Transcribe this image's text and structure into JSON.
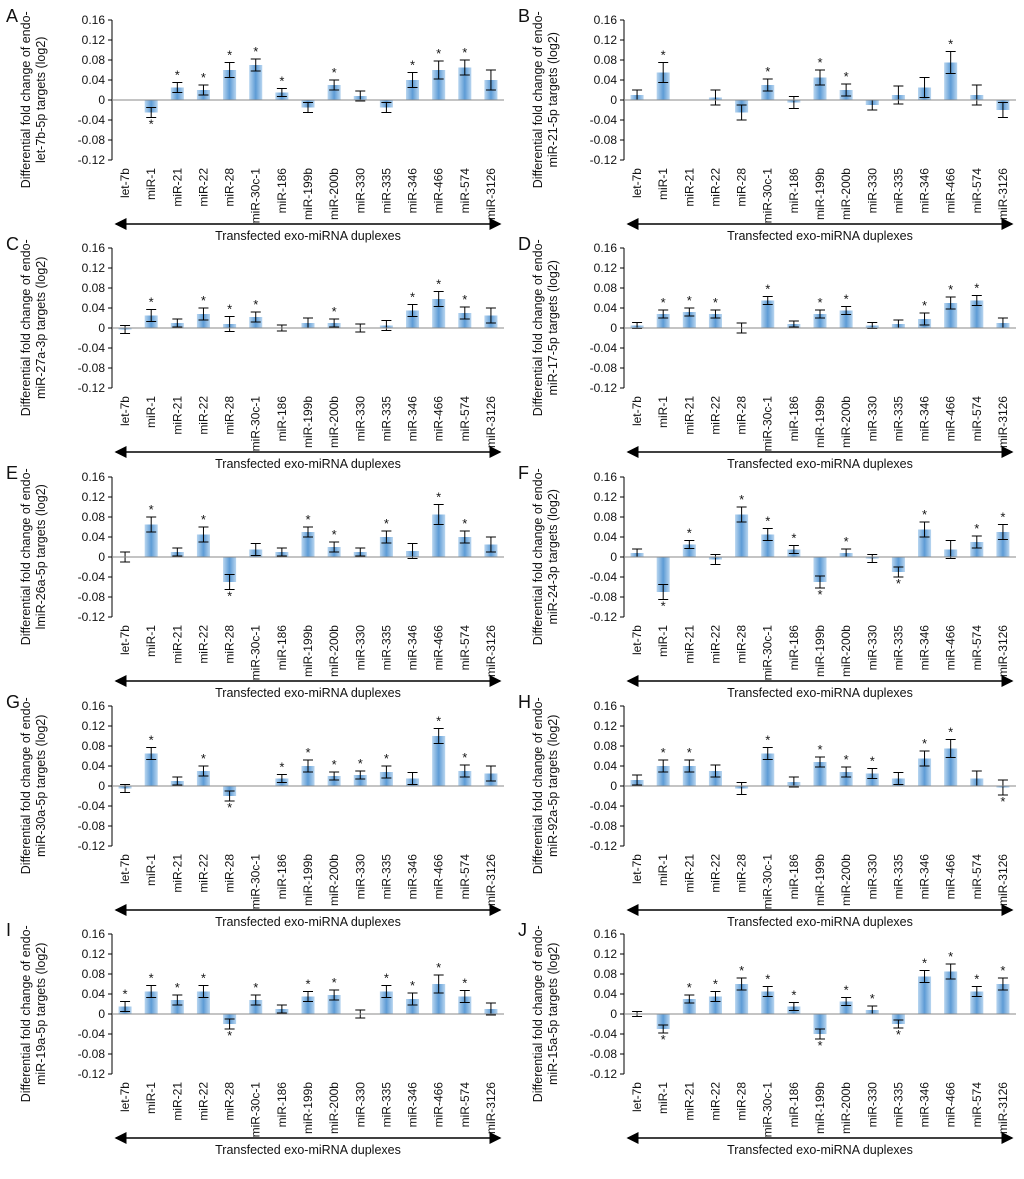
{
  "figure": {
    "shared": {
      "categories": [
        "let-7b",
        "miR-1",
        "miR-21",
        "miR-22",
        "miR-28",
        "miR-30c-1",
        "miR-186",
        "miR-199b",
        "miR-200b",
        "miR-330",
        "miR-335",
        "miR-346",
        "miR-466",
        "miR-574",
        "miR-3126"
      ],
      "ylim": [
        -0.12,
        0.16
      ],
      "yticks": [
        "0.16",
        "0.12",
        "0.08",
        "0.04",
        "0",
        "-0.04",
        "-0.08",
        "-0.12"
      ],
      "xlabel": "Transfected exo-miRNA duplexes",
      "significance_marker": "*"
    },
    "colors": {
      "bar": "#6fa8dc",
      "bar_dark": "#3d85c6",
      "axis": "#000000",
      "error": "#000000"
    }
  },
  "chart_data": [
    {
      "panel": "A",
      "type": "bar",
      "title": "",
      "ylabel_line1": "Differential fold change of endo-",
      "ylabel_line2": "let-7b-5p targets (log2)",
      "values": [
        0,
        -0.025,
        0.025,
        0.02,
        0.06,
        0.07,
        0.015,
        -0.015,
        0.03,
        0.008,
        -0.015,
        0.04,
        0.06,
        0.065,
        0.04
      ],
      "errors": [
        0,
        0.01,
        0.01,
        0.01,
        0.015,
        0.012,
        0.008,
        0.01,
        0.01,
        0.01,
        0.01,
        0.015,
        0.018,
        0.015,
        0.02
      ],
      "significant": [
        false,
        true,
        true,
        true,
        true,
        true,
        true,
        false,
        true,
        false,
        false,
        true,
        true,
        true,
        false
      ]
    },
    {
      "panel": "B",
      "type": "bar",
      "title": "",
      "ylabel_line1": "Differential fold change of endo-",
      "ylabel_line2": "miR-21-5p targets (log2)",
      "values": [
        0.01,
        0.055,
        0,
        0.005,
        -0.025,
        0.03,
        -0.005,
        0.045,
        0.02,
        -0.01,
        0.01,
        0.025,
        0.075,
        0.01,
        -0.02
      ],
      "errors": [
        0.01,
        0.02,
        0,
        0.015,
        0.015,
        0.012,
        0.012,
        0.015,
        0.012,
        0.01,
        0.018,
        0.02,
        0.022,
        0.02,
        0.015
      ],
      "significant": [
        false,
        true,
        false,
        false,
        false,
        true,
        false,
        true,
        true,
        false,
        false,
        false,
        true,
        false,
        false
      ]
    },
    {
      "panel": "C",
      "type": "bar",
      "title": "",
      "ylabel_line1": "Differential fold change of endo-",
      "ylabel_line2": "miR-27a-3p targets (log2)",
      "values": [
        -0.003,
        0.025,
        0.01,
        0.028,
        0.008,
        0.022,
        0,
        0.01,
        0.01,
        0,
        0.005,
        0.035,
        0.058,
        0.03,
        0.025
      ],
      "errors": [
        0.008,
        0.012,
        0.008,
        0.012,
        0.015,
        0.01,
        0.006,
        0.01,
        0.008,
        0.008,
        0.01,
        0.012,
        0.015,
        0.012,
        0.015
      ],
      "significant": [
        false,
        true,
        false,
        true,
        true,
        true,
        false,
        false,
        true,
        false,
        false,
        true,
        true,
        true,
        false
      ]
    },
    {
      "panel": "D",
      "type": "bar",
      "title": "",
      "ylabel_line1": "Differential fold change of endo-",
      "ylabel_line2": "miR-17-5p targets (log2)",
      "values": [
        0.005,
        0.028,
        0.032,
        0.028,
        0,
        0.055,
        0.008,
        0.028,
        0.035,
        0.005,
        0.008,
        0.018,
        0.05,
        0.055,
        0.01
      ],
      "errors": [
        0.006,
        0.008,
        0.008,
        0.008,
        0.01,
        0.008,
        0.006,
        0.008,
        0.008,
        0.006,
        0.008,
        0.012,
        0.012,
        0.01,
        0.01
      ],
      "significant": [
        false,
        true,
        true,
        true,
        false,
        true,
        false,
        true,
        true,
        false,
        false,
        true,
        true,
        true,
        false
      ]
    },
    {
      "panel": "E",
      "type": "bar",
      "title": "",
      "ylabel_line1": "Differential fold change of endo-",
      "ylabel_line2": "lmiR-26a-5p targets (log2)",
      "values": [
        0,
        0.065,
        0.01,
        0.045,
        -0.05,
        0.015,
        0.01,
        0.05,
        0.02,
        0.01,
        0.04,
        0.012,
        0.085,
        0.04,
        0.025
      ],
      "errors": [
        0.01,
        0.015,
        0.008,
        0.015,
        0.015,
        0.012,
        0.008,
        0.01,
        0.01,
        0.008,
        0.012,
        0.015,
        0.02,
        0.012,
        0.015
      ],
      "significant": [
        false,
        true,
        false,
        true,
        true,
        false,
        false,
        true,
        true,
        false,
        true,
        false,
        true,
        true,
        false
      ]
    },
    {
      "panel": "F",
      "type": "bar",
      "title": "",
      "ylabel_line1": "Differential fold change of endo-",
      "ylabel_line2": "miR-24-3p targets (log2)",
      "values": [
        0.008,
        -0.07,
        0.025,
        -0.005,
        0.085,
        0.045,
        0.015,
        -0.05,
        0.008,
        -0.003,
        -0.03,
        0.055,
        0.015,
        0.03,
        0.05
      ],
      "errors": [
        0.008,
        0.015,
        0.008,
        0.01,
        0.015,
        0.012,
        0.008,
        0.012,
        0.008,
        0.008,
        0.01,
        0.015,
        0.018,
        0.012,
        0.015
      ],
      "significant": [
        false,
        true,
        true,
        false,
        true,
        true,
        true,
        true,
        true,
        false,
        true,
        true,
        false,
        true,
        true
      ]
    },
    {
      "panel": "G",
      "type": "bar",
      "title": "",
      "ylabel_line1": "Differential fold change of endo-",
      "ylabel_line2": "miR-30a-5p targets (log2)",
      "values": [
        -0.005,
        0.065,
        0.01,
        0.03,
        -0.02,
        0,
        0.015,
        0.04,
        0.02,
        0.022,
        0.028,
        0.015,
        0.1,
        0.03,
        0.025
      ],
      "errors": [
        0.008,
        0.012,
        0.008,
        0.01,
        0.01,
        0,
        0.008,
        0.012,
        0.008,
        0.008,
        0.012,
        0.012,
        0.015,
        0.012,
        0.015
      ],
      "significant": [
        false,
        true,
        false,
        true,
        true,
        false,
        true,
        true,
        true,
        true,
        true,
        false,
        true,
        true,
        false
      ]
    },
    {
      "panel": "H",
      "type": "bar",
      "title": "",
      "ylabel_line1": "Differential fold change of endo-",
      "ylabel_line2": "miR-92a-5p targets (log2)",
      "values": [
        0.012,
        0.04,
        0.04,
        0.03,
        -0.005,
        0.065,
        0.008,
        0.048,
        0.028,
        0.025,
        0.015,
        0.055,
        0.075,
        0.015,
        -0.003
      ],
      "errors": [
        0.01,
        0.012,
        0.012,
        0.012,
        0.012,
        0.012,
        0.01,
        0.01,
        0.01,
        0.01,
        0.012,
        0.015,
        0.018,
        0.015,
        0.015
      ],
      "significant": [
        false,
        true,
        true,
        false,
        false,
        true,
        false,
        true,
        true,
        true,
        false,
        true,
        true,
        false,
        true
      ]
    },
    {
      "panel": "I",
      "type": "bar",
      "title": "",
      "ylabel_line1": "Differential fold change of endo-",
      "ylabel_line2": "miR-19a-5p targets (log2)",
      "values": [
        0.015,
        0.045,
        0.028,
        0.045,
        -0.02,
        0.028,
        0.01,
        0.035,
        0.038,
        0,
        0.045,
        0.03,
        0.06,
        0.035,
        0.01
      ],
      "errors": [
        0.01,
        0.012,
        0.01,
        0.012,
        0.01,
        0.01,
        0.008,
        0.01,
        0.01,
        0.008,
        0.012,
        0.012,
        0.018,
        0.012,
        0.012
      ],
      "significant": [
        true,
        true,
        true,
        true,
        true,
        true,
        false,
        true,
        true,
        false,
        true,
        true,
        true,
        true,
        false
      ]
    },
    {
      "panel": "J",
      "type": "bar",
      "title": "",
      "ylabel_line1": "Differential fold change of endo-",
      "ylabel_line2": "miR-15a-5p targets (log2)",
      "values": [
        0,
        -0.03,
        0.03,
        0.035,
        0.06,
        0.045,
        0.015,
        -0.04,
        0.025,
        0.008,
        -0.02,
        0.075,
        0.085,
        0.045,
        0.06
      ],
      "errors": [
        0.005,
        0.008,
        0.008,
        0.01,
        0.012,
        0.01,
        0.008,
        0.01,
        0.008,
        0.008,
        0.008,
        0.012,
        0.015,
        0.01,
        0.012
      ],
      "significant": [
        false,
        true,
        true,
        true,
        true,
        true,
        true,
        true,
        true,
        true,
        true,
        true,
        true,
        true,
        true
      ]
    }
  ]
}
